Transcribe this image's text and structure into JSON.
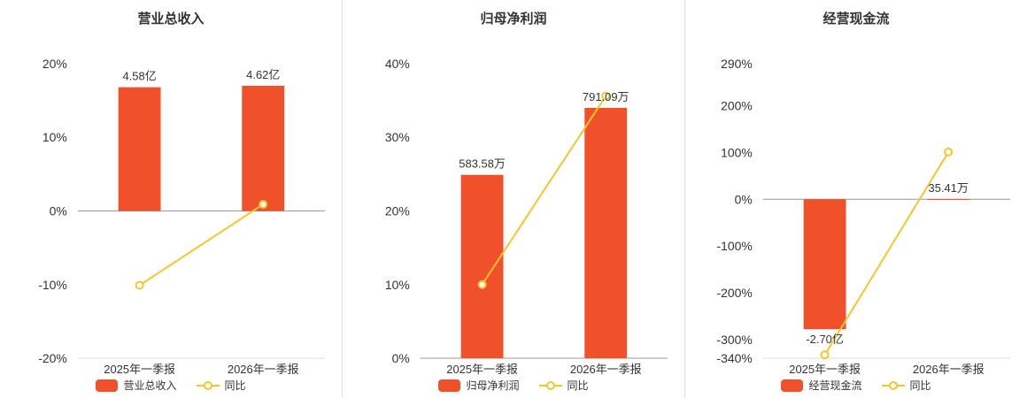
{
  "page": {
    "background": "#ffffff"
  },
  "colors": {
    "bar": "#f0512a",
    "line": "#f7c52b",
    "text": "#333333",
    "axis_zero": "#999999",
    "axis_bottom": "#dddddd",
    "divider": "#e0e0e0"
  },
  "chart_data": [
    {
      "type": "bar",
      "title": "营业总收入",
      "categories": [
        "2025年一季报",
        "2026年一季报"
      ],
      "ylim": [
        -20,
        20
      ],
      "yticks": [
        20,
        10,
        0,
        -10,
        -20
      ],
      "ytick_suffix": "%",
      "grid": false,
      "legend": [
        "营业总收入",
        "同比"
      ],
      "legend_position": "bottom",
      "series": [
        {
          "name": "营业总收入",
          "type": "bar",
          "display_values": [
            "4.58亿",
            "4.62亿"
          ],
          "plot_height_pct": [
            16.8,
            17.0
          ]
        },
        {
          "name": "同比",
          "type": "line",
          "values_pct": [
            -10.1,
            0.9
          ]
        }
      ]
    },
    {
      "type": "bar",
      "title": "归母净利润",
      "categories": [
        "2025年一季报",
        "2026年一季报"
      ],
      "ylim": [
        0,
        40
      ],
      "yticks": [
        40,
        30,
        20,
        10,
        0
      ],
      "ytick_suffix": "%",
      "grid": false,
      "legend": [
        "归母净利润",
        "同比"
      ],
      "legend_position": "bottom",
      "series": [
        {
          "name": "归母净利润",
          "type": "bar",
          "display_values": [
            "583.58万",
            "791.09万"
          ],
          "plot_height_pct": [
            24.9,
            34.0
          ]
        },
        {
          "name": "同比",
          "type": "line",
          "values_pct": [
            10.0,
            35.6
          ]
        }
      ]
    },
    {
      "type": "bar",
      "title": "经营现金流",
      "categories": [
        "2025年一季报",
        "2026年一季报"
      ],
      "ylim": [
        -340,
        290
      ],
      "yticks": [
        290,
        200,
        100,
        0,
        -100,
        -200,
        -300,
        -340
      ],
      "ytick_suffix": "%",
      "grid": false,
      "legend": [
        "经营现金流",
        "同比"
      ],
      "legend_position": "bottom",
      "series": [
        {
          "name": "经营现金流",
          "type": "bar",
          "display_values": [
            "-2.70亿",
            "35.41万"
          ],
          "plot_height_pct": [
            -278,
            0.4
          ]
        },
        {
          "name": "同比",
          "type": "line",
          "values_pct": [
            -333,
            101
          ]
        }
      ]
    }
  ]
}
